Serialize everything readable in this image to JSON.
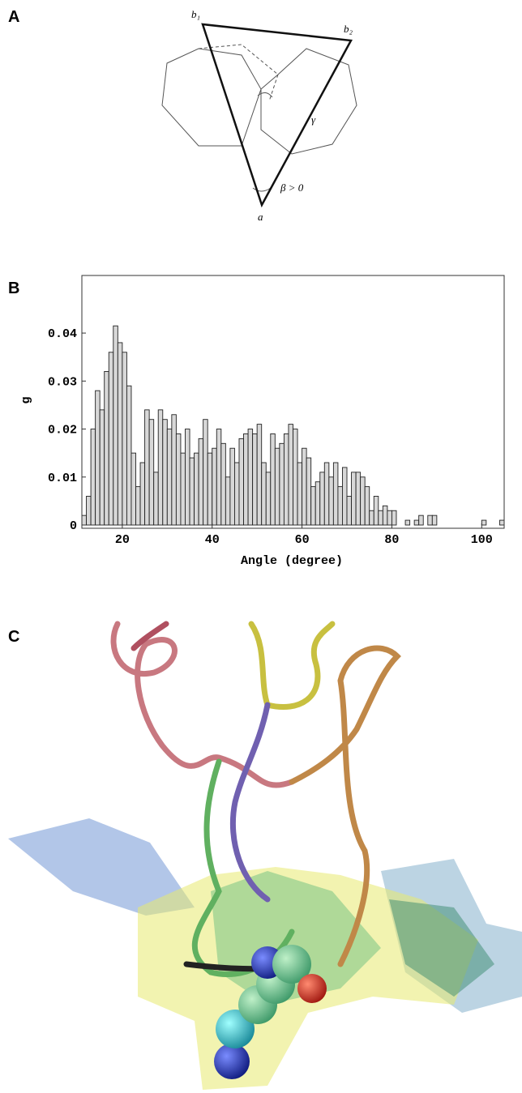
{
  "panels": {
    "a": "A",
    "b": "B",
    "c": "C"
  },
  "diagram": {
    "labels": {
      "b1": "b₁",
      "b2": "b₂",
      "a": "a",
      "beta": "β > 0",
      "gamma": "γ"
    }
  },
  "chart_data": {
    "type": "histogram",
    "xlabel": "Angle (degree)",
    "ylabel": "g",
    "bins": [
      11,
      12,
      13,
      14,
      15,
      16,
      17,
      18,
      19,
      20,
      21,
      22,
      23,
      24,
      25,
      26,
      27,
      28,
      29,
      30,
      31,
      32,
      33,
      34,
      35,
      36,
      37,
      38,
      39,
      40,
      41,
      42,
      43,
      44,
      45,
      46,
      47,
      48,
      49,
      50,
      51,
      52,
      53,
      54,
      55,
      56,
      57,
      58,
      59,
      60,
      61,
      62,
      63,
      64,
      65,
      66,
      67,
      68,
      69,
      70,
      71,
      72,
      73,
      74,
      75,
      76,
      77,
      78,
      79,
      80,
      81,
      82,
      83,
      84,
      85,
      86,
      87,
      88,
      89,
      90,
      91,
      92,
      93,
      94,
      95,
      96,
      97,
      98,
      99,
      100,
      101,
      102,
      103,
      104,
      105
    ],
    "values": [
      0.002,
      0.006,
      0.02,
      0.028,
      0.024,
      0.032,
      0.036,
      0.0415,
      0.038,
      0.036,
      0.029,
      0.015,
      0.008,
      0.013,
      0.024,
      0.022,
      0.011,
      0.024,
      0.022,
      0.02,
      0.023,
      0.019,
      0.015,
      0.02,
      0.014,
      0.015,
      0.018,
      0.022,
      0.015,
      0.016,
      0.02,
      0.017,
      0.01,
      0.016,
      0.013,
      0.018,
      0.019,
      0.02,
      0.019,
      0.021,
      0.013,
      0.011,
      0.019,
      0.016,
      0.017,
      0.019,
      0.021,
      0.02,
      0.013,
      0.016,
      0.014,
      0.008,
      0.009,
      0.011,
      0.013,
      0.01,
      0.013,
      0.008,
      0.012,
      0.006,
      0.011,
      0.011,
      0.01,
      0.008,
      0.003,
      0.006,
      0.003,
      0.004,
      0.003,
      0.003,
      0,
      0,
      0.001,
      0,
      0.001,
      0.002,
      0,
      0.002,
      0.002,
      0,
      0,
      0,
      0,
      0,
      0,
      0,
      0,
      0,
      0,
      0.001,
      0,
      0,
      0,
      0.001
    ],
    "xlim": [
      11,
      105
    ],
    "ylim": [
      0,
      0.052
    ],
    "xticks": [
      20,
      40,
      60,
      80,
      100
    ],
    "yticks": [
      0,
      0.01,
      0.02,
      0.03,
      0.04
    ],
    "color": "#d8d8d8"
  }
}
